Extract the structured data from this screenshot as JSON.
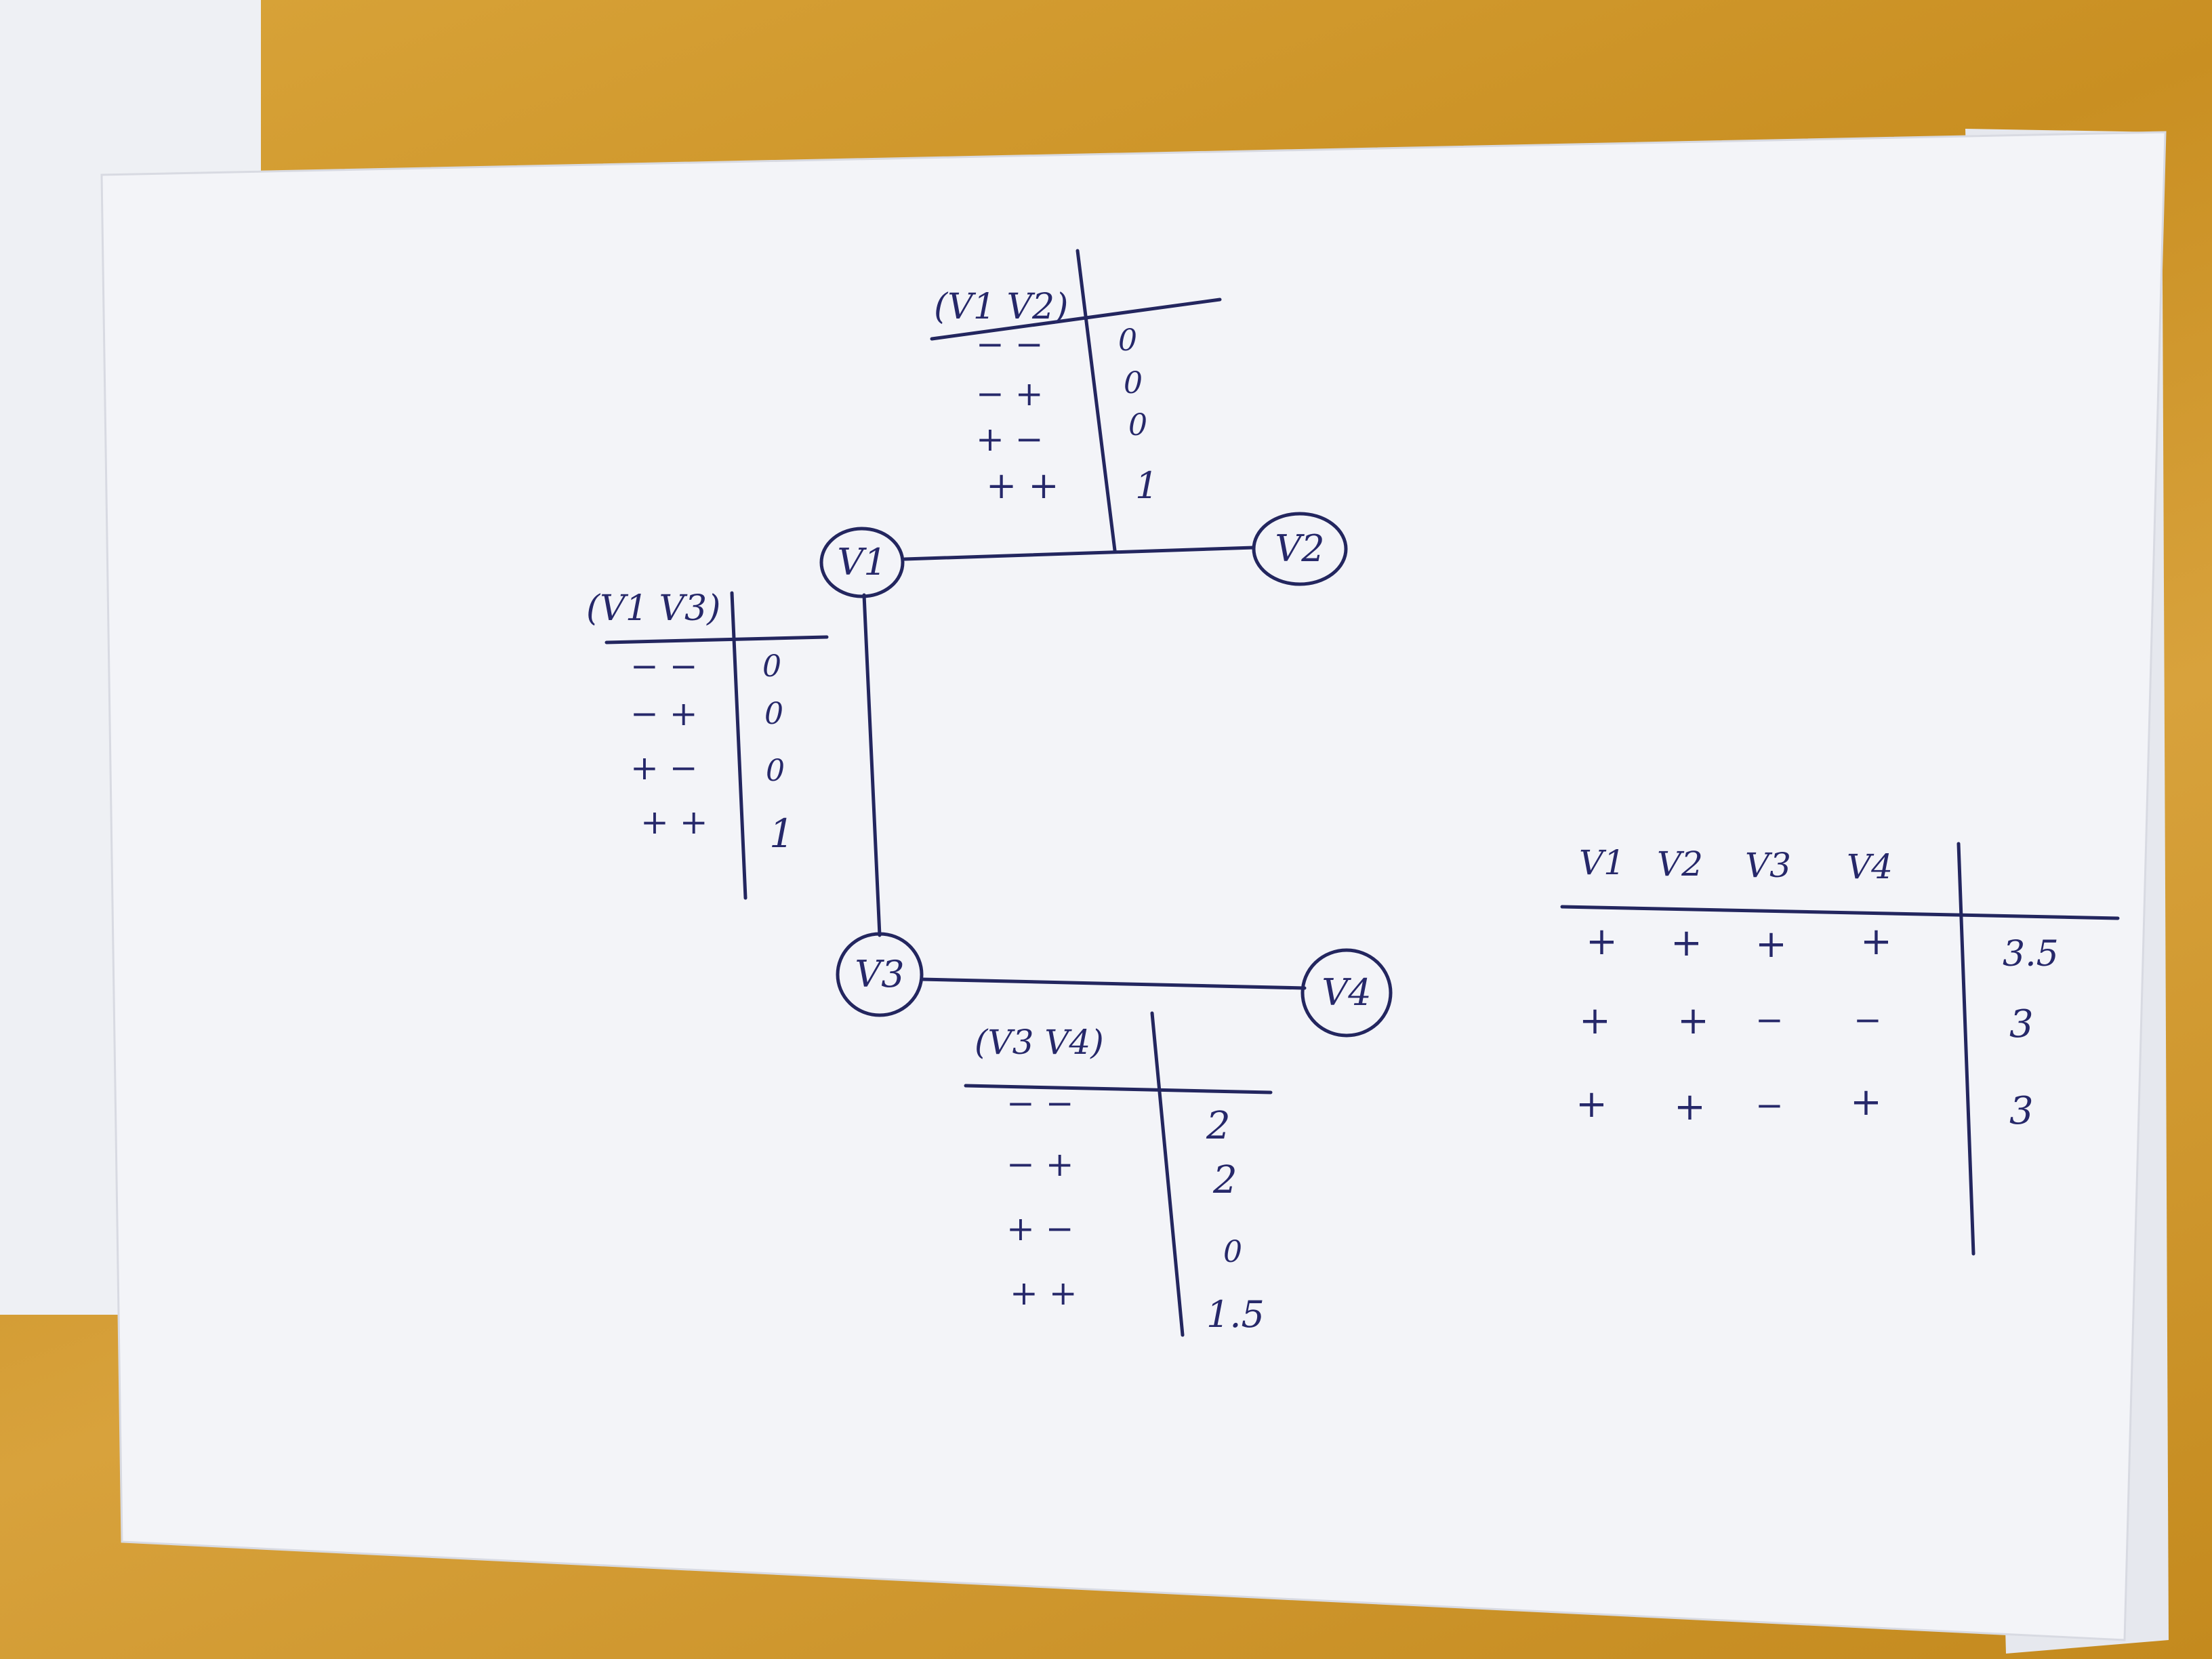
{
  "nodes": [
    "V1",
    "V2",
    "V3",
    "V4"
  ],
  "tables": {
    "v1v2": {
      "header": "(V1 V2)",
      "rows": [
        {
          "signs": "− −",
          "value": "0"
        },
        {
          "signs": "− +",
          "value": "0"
        },
        {
          "signs": "+ −",
          "value": "0"
        },
        {
          "signs": "+ +",
          "value": "1"
        }
      ]
    },
    "v1v3": {
      "header": "(V1 V3)",
      "rows": [
        {
          "signs": "− −",
          "value": "0"
        },
        {
          "signs": "− +",
          "value": "0"
        },
        {
          "signs": "+ −",
          "value": "0"
        },
        {
          "signs": "+ +",
          "value": "1"
        }
      ]
    },
    "v3v4": {
      "header": "(V3 V4)",
      "rows": [
        {
          "signs": "− −",
          "value": "2"
        },
        {
          "signs": "− +",
          "value": "2"
        },
        {
          "signs": "+ −",
          "value": "0"
        },
        {
          "signs": "+ +",
          "value": "1.5"
        }
      ]
    },
    "joint": {
      "headers": [
        "V1",
        "V2",
        "V3",
        "V4"
      ],
      "rows": [
        {
          "signs": [
            "+",
            "+",
            "+",
            "+"
          ],
          "value": "3.5"
        },
        {
          "signs": [
            "+",
            "+",
            "−",
            "−"
          ],
          "value": "3"
        },
        {
          "signs": [
            "+",
            "+",
            "−",
            "+"
          ],
          "value": "3"
        }
      ]
    }
  },
  "colors": {
    "ink": "#23265f",
    "paper": "#f3f4f8",
    "desk": "#d29a2e"
  }
}
